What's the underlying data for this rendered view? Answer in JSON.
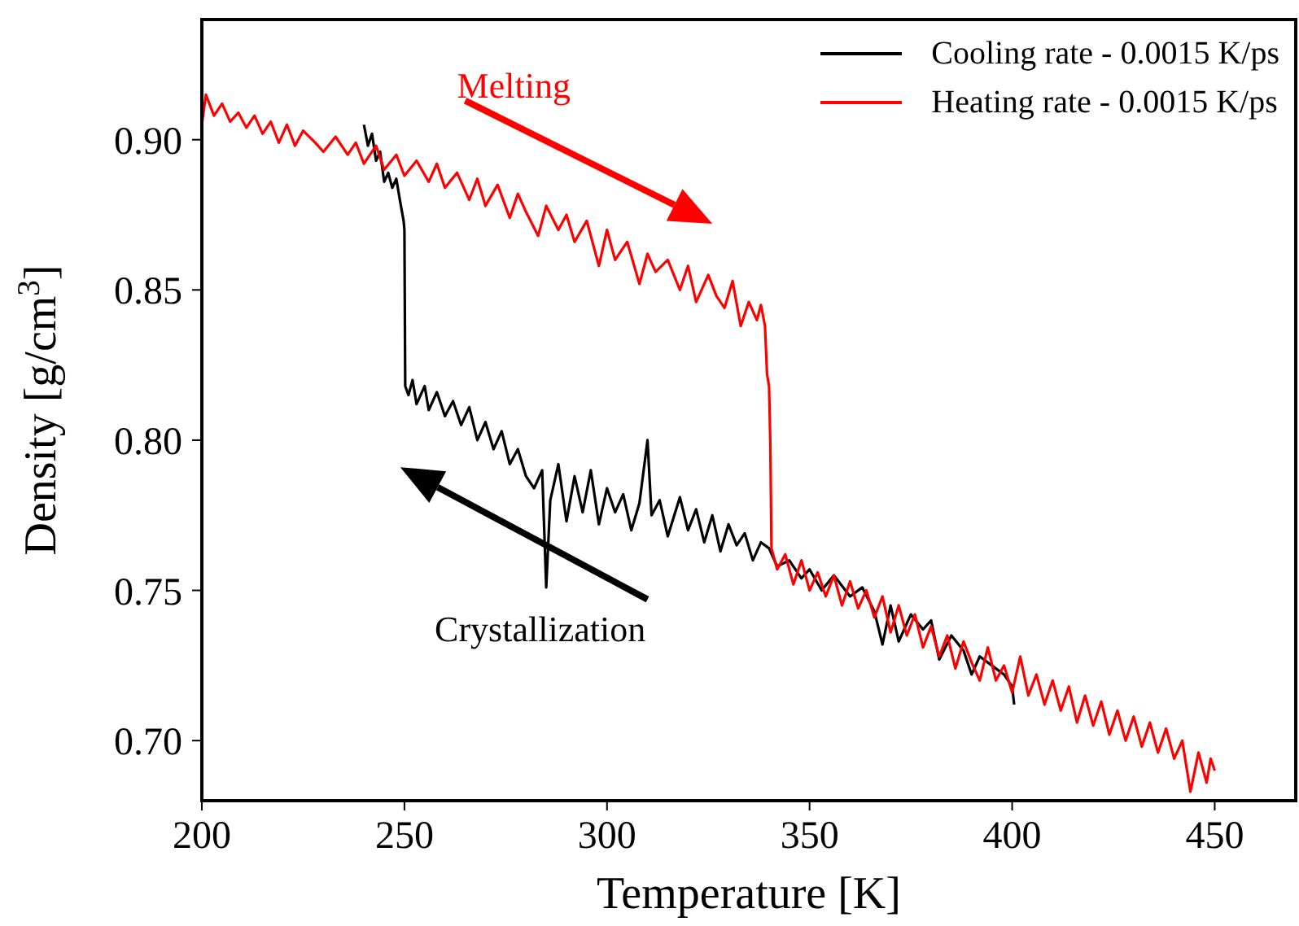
{
  "chart_data": {
    "type": "line",
    "xlabel": "Temperature [K]",
    "ylabel": "Density [g/cm$^{3}$]",
    "xlim": [
      200,
      470
    ],
    "xticks": [
      200,
      250,
      300,
      350,
      400,
      450
    ],
    "ylim": [
      0.68,
      0.94
    ],
    "yticks": [
      {
        "value": 0.7,
        "label": "0.70"
      },
      0.75,
      {
        "value": 0.8,
        "label": "0.80"
      },
      0.85,
      {
        "value": 0.9,
        "label": "0.90"
      }
    ],
    "grid": false,
    "legend": "top right",
    "marker": "none",
    "line_style": "solid",
    "annotations": [
      "Melting",
      "Crystallization"
    ],
    "series": [
      {
        "name": "Cooling rate - 0.0015 K/ps",
        "color": "#000000",
        "x": [
          240,
          241,
          242,
          243,
          244,
          245,
          246,
          247,
          248,
          249,
          249.8,
          250,
          250.2,
          251,
          252,
          253,
          255,
          256,
          258,
          260,
          262,
          264,
          266,
          268,
          270,
          272,
          274,
          276,
          278,
          280,
          282,
          284,
          285,
          286,
          288,
          290,
          292,
          294,
          296,
          298,
          300,
          302,
          304,
          306,
          308,
          310,
          311,
          313,
          315,
          318,
          320,
          322,
          324,
          326,
          328,
          330,
          332,
          334,
          336,
          338,
          340,
          342,
          345,
          348,
          350,
          353,
          356,
          360,
          363,
          366,
          368,
          370,
          372,
          375,
          378,
          380,
          382,
          385,
          388,
          390,
          392,
          395,
          398,
          400,
          400.5
        ],
        "values": [
          0.905,
          0.898,
          0.902,
          0.893,
          0.896,
          0.886,
          0.889,
          0.884,
          0.887,
          0.879,
          0.873,
          0.87,
          0.818,
          0.815,
          0.82,
          0.812,
          0.818,
          0.81,
          0.816,
          0.808,
          0.813,
          0.805,
          0.811,
          0.8,
          0.806,
          0.797,
          0.803,
          0.792,
          0.797,
          0.788,
          0.784,
          0.79,
          0.751,
          0.78,
          0.792,
          0.773,
          0.788,
          0.776,
          0.79,
          0.772,
          0.784,
          0.776,
          0.782,
          0.77,
          0.779,
          0.8,
          0.775,
          0.78,
          0.768,
          0.781,
          0.77,
          0.777,
          0.766,
          0.775,
          0.763,
          0.772,
          0.765,
          0.769,
          0.76,
          0.766,
          0.764,
          0.758,
          0.76,
          0.754,
          0.757,
          0.75,
          0.755,
          0.748,
          0.751,
          0.743,
          0.732,
          0.745,
          0.733,
          0.742,
          0.737,
          0.74,
          0.727,
          0.735,
          0.73,
          0.722,
          0.728,
          0.725,
          0.722,
          0.718,
          0.712
        ]
      },
      {
        "name": "Heating rate - 0.0015 K/ps",
        "color": "#ff0000",
        "x": [
          200,
          201,
          203,
          205,
          207,
          209,
          211,
          213,
          215,
          217,
          219,
          221,
          223,
          225,
          228,
          230,
          233,
          236,
          238,
          240,
          243,
          245,
          248,
          250,
          253,
          256,
          258,
          260,
          263,
          266,
          268,
          270,
          273,
          276,
          278,
          280,
          283,
          285,
          288,
          290,
          292,
          295,
          298,
          300,
          302,
          305,
          308,
          310,
          312,
          315,
          318,
          320,
          322,
          325,
          327,
          329,
          331,
          333,
          335,
          337,
          338,
          339,
          339.5,
          340,
          340.3,
          340.6,
          342,
          344,
          346,
          348,
          350,
          352,
          354,
          356,
          358,
          360,
          362,
          364,
          366,
          368,
          370,
          372,
          374,
          376,
          378,
          380,
          382,
          384,
          386,
          388,
          390,
          392,
          394,
          396,
          398,
          400,
          402,
          404,
          406,
          408,
          410,
          412,
          414,
          416,
          418,
          420,
          422,
          424,
          426,
          428,
          430,
          432,
          434,
          436,
          438,
          440,
          442,
          444,
          446,
          448,
          449,
          450
        ],
        "values": [
          0.905,
          0.915,
          0.908,
          0.912,
          0.906,
          0.909,
          0.904,
          0.908,
          0.902,
          0.906,
          0.899,
          0.905,
          0.898,
          0.903,
          0.899,
          0.896,
          0.901,
          0.895,
          0.899,
          0.892,
          0.898,
          0.89,
          0.895,
          0.888,
          0.893,
          0.886,
          0.892,
          0.884,
          0.889,
          0.88,
          0.887,
          0.878,
          0.885,
          0.874,
          0.882,
          0.876,
          0.868,
          0.878,
          0.87,
          0.875,
          0.866,
          0.873,
          0.858,
          0.87,
          0.86,
          0.866,
          0.852,
          0.862,
          0.856,
          0.86,
          0.85,
          0.858,
          0.846,
          0.855,
          0.848,
          0.844,
          0.853,
          0.838,
          0.846,
          0.84,
          0.845,
          0.838,
          0.822,
          0.818,
          0.8,
          0.764,
          0.757,
          0.762,
          0.752,
          0.76,
          0.75,
          0.756,
          0.748,
          0.755,
          0.745,
          0.753,
          0.744,
          0.75,
          0.741,
          0.748,
          0.736,
          0.745,
          0.735,
          0.742,
          0.731,
          0.738,
          0.728,
          0.735,
          0.724,
          0.733,
          0.726,
          0.72,
          0.731,
          0.72,
          0.725,
          0.716,
          0.728,
          0.715,
          0.722,
          0.712,
          0.72,
          0.71,
          0.718,
          0.706,
          0.715,
          0.705,
          0.713,
          0.702,
          0.71,
          0.7,
          0.708,
          0.698,
          0.706,
          0.696,
          0.704,
          0.694,
          0.7,
          0.683,
          0.696,
          0.686,
          0.694,
          0.69
        ]
      }
    ]
  }
}
